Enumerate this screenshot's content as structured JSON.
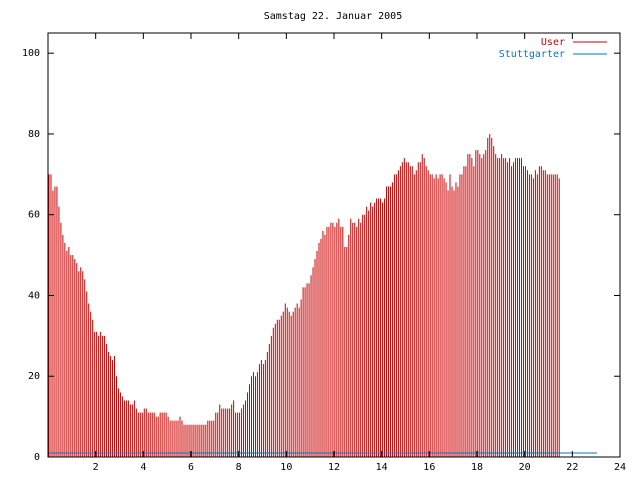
{
  "chart_data": {
    "type": "bar",
    "title": "Samstag 22. Januar 2005",
    "xlabel": "",
    "ylabel": "",
    "xlim": [
      0,
      24
    ],
    "ylim": [
      0,
      105
    ],
    "x_ticks": [
      2,
      4,
      6,
      8,
      10,
      12,
      14,
      16,
      18,
      20,
      22,
      24
    ],
    "y_ticks": [
      0,
      20,
      40,
      60,
      80,
      100
    ],
    "x_tick_labels": [
      "2",
      "4",
      "6",
      "8",
      "10",
      "12",
      "14",
      "16",
      "18",
      "20",
      "22",
      "24"
    ],
    "y_tick_labels": [
      "0",
      "20",
      "40",
      "60",
      "80",
      "100"
    ],
    "grid": false,
    "legend_position": "top-right",
    "interval_hours": 0.0833,
    "series": [
      {
        "name": "User",
        "color": "#cc0000",
        "values": [
          70,
          70,
          66,
          67,
          67,
          62,
          58,
          55,
          53,
          51,
          52,
          50,
          50,
          49,
          48,
          46,
          47,
          46,
          44,
          41,
          38,
          36,
          34,
          31,
          31,
          30,
          31,
          30,
          30,
          28,
          26,
          25,
          24,
          25,
          20,
          17,
          16,
          15,
          14,
          14,
          14,
          13,
          13,
          14,
          12,
          11,
          11,
          11,
          12,
          12,
          11,
          11,
          11,
          11,
          10,
          10,
          11,
          11,
          11,
          11,
          10,
          9,
          9,
          9,
          9,
          9,
          10,
          9,
          8,
          8,
          8,
          8,
          8,
          8,
          8,
          8,
          8,
          8,
          8,
          8,
          9,
          9,
          9,
          9,
          11,
          11,
          13,
          12,
          12,
          12,
          12,
          12,
          13,
          14,
          11,
          11,
          11,
          12,
          13,
          14,
          16,
          18,
          20,
          21,
          20,
          21,
          23,
          24,
          23,
          24,
          26,
          28,
          30,
          32,
          33,
          34,
          34,
          35,
          36,
          38,
          37,
          36,
          35,
          36,
          37,
          38,
          37,
          39,
          42,
          42,
          43,
          43,
          45,
          47,
          49,
          51,
          53,
          54,
          56,
          55,
          57,
          57,
          58,
          58,
          57,
          58,
          59,
          57,
          57,
          52,
          52,
          55,
          59,
          58,
          58,
          57,
          59,
          58,
          60,
          60,
          62,
          61,
          63,
          62,
          63,
          64,
          64,
          64,
          63,
          64,
          67,
          67,
          67,
          68,
          70,
          70,
          71,
          72,
          73,
          74,
          73,
          73,
          72,
          72,
          70,
          71,
          73,
          73,
          75,
          74,
          72,
          71,
          70,
          70,
          69,
          70,
          69,
          70,
          70,
          69,
          68,
          66,
          70,
          67,
          66,
          68,
          67,
          70,
          70,
          72,
          72,
          75,
          75,
          74,
          72,
          76,
          76,
          75,
          74,
          75,
          76,
          79,
          80,
          79,
          77,
          75,
          74,
          74,
          75,
          74,
          74,
          73,
          74,
          72,
          73,
          74,
          74,
          74,
          74,
          72,
          72,
          71,
          70,
          70,
          69,
          71,
          70,
          72,
          72,
          71,
          71,
          70,
          70,
          70,
          70,
          70,
          70,
          69
        ]
      },
      {
        "name": "Stuttgarter",
        "color": "#0077cc",
        "values": [
          1,
          1,
          1,
          1,
          1,
          1,
          1,
          1,
          1,
          1,
          1,
          1,
          1,
          1,
          1,
          1,
          1,
          1,
          1,
          1,
          1,
          1,
          1,
          1,
          1,
          1,
          1,
          1,
          1,
          1,
          1,
          1,
          1,
          1,
          1,
          1,
          1,
          1,
          1,
          1,
          1,
          1,
          1,
          1,
          1,
          1,
          1,
          1,
          1,
          1,
          1,
          1,
          1,
          1,
          1,
          1,
          1,
          1,
          1,
          1,
          1,
          1,
          1,
          1,
          1,
          1,
          1,
          1,
          1,
          1,
          1,
          1,
          1,
          1,
          1,
          1,
          1,
          1,
          1,
          1,
          1,
          1,
          1,
          1,
          1,
          1,
          1,
          1,
          1,
          1,
          1,
          1,
          1,
          1,
          1,
          1,
          1,
          1,
          1,
          1,
          1,
          1,
          1,
          1,
          1,
          1,
          1,
          1,
          1,
          1,
          1,
          1,
          1,
          1,
          1,
          1,
          1,
          1,
          1,
          1,
          1,
          1,
          1,
          1,
          1,
          1,
          1,
          1,
          1,
          1,
          1,
          1,
          1,
          1,
          1,
          1,
          1,
          1,
          1,
          1,
          1,
          1,
          1,
          1,
          1,
          1,
          1,
          1,
          1,
          1,
          1,
          1,
          1,
          1,
          1,
          1,
          1,
          1,
          1,
          1,
          1,
          1,
          1,
          1,
          1,
          1,
          1,
          1,
          1,
          1,
          1,
          1,
          1,
          1,
          1,
          1,
          1,
          1,
          1,
          1,
          1,
          1,
          1,
          1,
          1,
          1,
          1,
          1,
          1,
          1,
          1,
          1,
          1,
          1,
          1,
          1,
          1,
          1,
          1,
          1,
          1,
          1,
          1,
          1,
          1,
          1,
          1,
          1,
          1,
          1,
          1,
          1,
          1,
          1,
          1,
          1,
          1,
          1,
          1,
          1,
          1,
          1,
          1,
          1,
          1,
          1,
          1,
          1,
          1,
          1,
          1,
          1,
          1,
          1,
          1,
          1,
          1,
          1,
          1,
          1,
          1,
          1,
          1,
          1,
          1,
          1,
          1,
          1,
          1,
          1,
          1,
          1,
          1,
          1,
          1,
          1,
          1,
          1,
          1,
          1,
          1,
          1,
          1,
          1,
          1,
          1,
          1,
          1,
          1,
          1,
          1,
          1,
          1,
          1,
          1,
          1,
          1
        ]
      }
    ]
  }
}
